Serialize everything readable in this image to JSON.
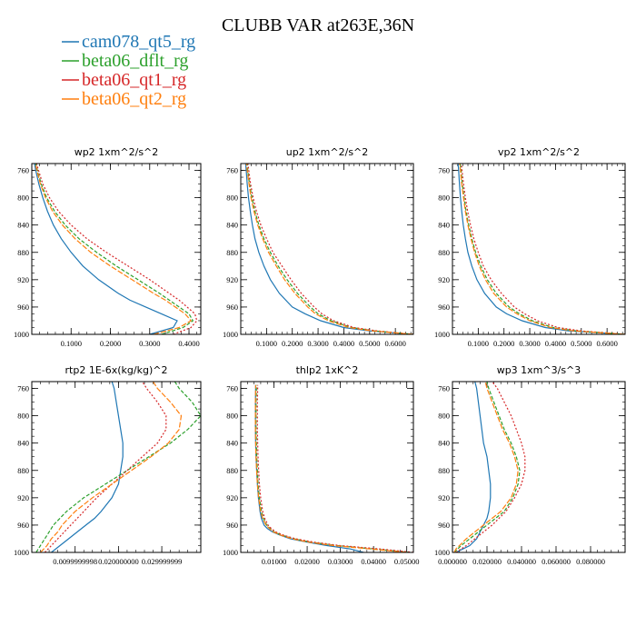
{
  "title": "CLUBB VAR at263E,36N",
  "legend": [
    {
      "name": "cam078_qt5_rg",
      "color": "#1f77b4",
      "dash": ""
    },
    {
      "name": "beta06_dflt_rg",
      "color": "#2ca02c",
      "dash": "4,2"
    },
    {
      "name": "beta06_qt1_rg",
      "color": "#d62728",
      "dash": "2,2"
    },
    {
      "name": "beta06_qt2_rg",
      "color": "#ff7f0e",
      "dash": "6,2"
    }
  ],
  "chart_data": [
    {
      "type": "line",
      "title": "wp2 1xm^2/s^2",
      "xlim": [
        0,
        0.43
      ],
      "ylim": [
        1000,
        750
      ],
      "xticks": [
        0.1,
        0.2,
        0.3,
        0.4
      ],
      "xtick_labels": [
        "0.1000",
        "0.2000",
        "0.3000",
        "0.4000"
      ],
      "yticks": [
        760,
        800,
        840,
        880,
        920,
        960,
        1000
      ],
      "y": [
        1000,
        990,
        980,
        970,
        960,
        950,
        940,
        920,
        900,
        880,
        860,
        840,
        820,
        800,
        780,
        760,
        750
      ],
      "series": [
        {
          "name": "cam078_qt5_rg",
          "values": [
            0.3,
            0.36,
            0.37,
            0.33,
            0.29,
            0.25,
            0.22,
            0.17,
            0.13,
            0.1,
            0.075,
            0.055,
            0.04,
            0.028,
            0.018,
            0.01,
            0.007
          ]
        },
        {
          "name": "beta06_dflt_rg",
          "values": [
            0.33,
            0.385,
            0.41,
            0.4,
            0.375,
            0.35,
            0.325,
            0.27,
            0.215,
            0.165,
            0.12,
            0.085,
            0.058,
            0.038,
            0.024,
            0.014,
            0.01
          ]
        },
        {
          "name": "beta06_qt1_rg",
          "values": [
            0.36,
            0.405,
            0.42,
            0.415,
            0.395,
            0.375,
            0.35,
            0.3,
            0.245,
            0.19,
            0.14,
            0.1,
            0.068,
            0.045,
            0.028,
            0.017,
            0.012
          ]
        },
        {
          "name": "beta06_qt2_rg",
          "values": [
            0.31,
            0.375,
            0.405,
            0.39,
            0.365,
            0.34,
            0.31,
            0.255,
            0.2,
            0.15,
            0.11,
            0.078,
            0.053,
            0.035,
            0.022,
            0.013,
            0.009
          ]
        }
      ]
    },
    {
      "type": "line",
      "title": "up2 1xm^2/s^2",
      "xlim": [
        0,
        0.67
      ],
      "ylim": [
        1000,
        750
      ],
      "xticks": [
        0.1,
        0.2,
        0.3,
        0.4,
        0.5,
        0.6
      ],
      "xtick_labels": [
        "0.1000",
        "0.2000",
        "0.3000",
        "0.4000",
        "0.5000",
        "0.6000"
      ],
      "yticks": [
        760,
        800,
        840,
        880,
        920,
        960,
        1000
      ],
      "y": [
        1000,
        995,
        990,
        980,
        970,
        960,
        940,
        920,
        900,
        880,
        860,
        840,
        820,
        800,
        780,
        760,
        750
      ],
      "series": [
        {
          "name": "cam078_qt5_rg",
          "values": [
            0.67,
            0.5,
            0.4,
            0.31,
            0.25,
            0.2,
            0.15,
            0.115,
            0.09,
            0.07,
            0.055,
            0.045,
            0.037,
            0.03,
            0.025,
            0.021,
            0.019
          ]
        },
        {
          "name": "beta06_dflt_rg",
          "values": [
            0.67,
            0.52,
            0.43,
            0.35,
            0.3,
            0.27,
            0.22,
            0.18,
            0.145,
            0.115,
            0.09,
            0.07,
            0.055,
            0.043,
            0.034,
            0.027,
            0.024
          ]
        },
        {
          "name": "beta06_qt1_rg",
          "values": [
            0.67,
            0.53,
            0.44,
            0.36,
            0.315,
            0.285,
            0.235,
            0.195,
            0.16,
            0.125,
            0.1,
            0.078,
            0.061,
            0.048,
            0.038,
            0.031,
            0.028
          ]
        },
        {
          "name": "beta06_qt2_rg",
          "values": [
            0.67,
            0.51,
            0.42,
            0.34,
            0.29,
            0.26,
            0.21,
            0.17,
            0.138,
            0.108,
            0.085,
            0.066,
            0.051,
            0.04,
            0.032,
            0.025,
            0.022
          ]
        }
      ]
    },
    {
      "type": "line",
      "title": "vp2 1xm^2/s^2",
      "xlim": [
        0,
        0.67
      ],
      "ylim": [
        1000,
        750
      ],
      "xticks": [
        0.1,
        0.2,
        0.3,
        0.4,
        0.5,
        0.6
      ],
      "xtick_labels": [
        "0.1000",
        "0.2000",
        "0.3000",
        "0.4000",
        "0.5000",
        "0.6000"
      ],
      "yticks": [
        760,
        800,
        840,
        880,
        920,
        960,
        1000
      ],
      "y": [
        1000,
        995,
        990,
        980,
        970,
        960,
        940,
        920,
        900,
        880,
        860,
        840,
        820,
        800,
        780,
        760,
        750
      ],
      "series": [
        {
          "name": "cam078_qt5_rg",
          "values": [
            0.67,
            0.45,
            0.36,
            0.27,
            0.21,
            0.17,
            0.125,
            0.095,
            0.075,
            0.06,
            0.05,
            0.042,
            0.036,
            0.031,
            0.027,
            0.024,
            0.022
          ]
        },
        {
          "name": "beta06_dflt_rg",
          "values": [
            0.67,
            0.48,
            0.39,
            0.31,
            0.26,
            0.22,
            0.17,
            0.135,
            0.11,
            0.09,
            0.075,
            0.063,
            0.053,
            0.045,
            0.038,
            0.033,
            0.03
          ]
        },
        {
          "name": "beta06_qt1_rg",
          "values": [
            0.67,
            0.5,
            0.41,
            0.33,
            0.28,
            0.24,
            0.19,
            0.15,
            0.12,
            0.1,
            0.083,
            0.07,
            0.059,
            0.05,
            0.043,
            0.037,
            0.034
          ]
        },
        {
          "name": "beta06_qt2_rg",
          "values": [
            0.67,
            0.47,
            0.38,
            0.3,
            0.25,
            0.21,
            0.16,
            0.128,
            0.104,
            0.086,
            0.072,
            0.06,
            0.05,
            0.043,
            0.036,
            0.031,
            0.028
          ]
        }
      ]
    },
    {
      "type": "line",
      "title": "rtp2 1E-6x(kg/kg)^2",
      "xlim": [
        0,
        0.039
      ],
      "ylim": [
        1000,
        750
      ],
      "xticks": [
        0.01,
        0.02,
        0.03
      ],
      "xtick_labels": [
        "0.0099999998",
        "0.020000000",
        "0.029999999"
      ],
      "yticks": [
        760,
        800,
        840,
        880,
        920,
        960,
        1000
      ],
      "y": [
        1000,
        990,
        980,
        970,
        960,
        950,
        940,
        920,
        900,
        880,
        860,
        840,
        820,
        800,
        780,
        760,
        750
      ],
      "series": [
        {
          "name": "cam078_qt5_rg",
          "values": [
            0.0045,
            0.0065,
            0.0085,
            0.0105,
            0.0125,
            0.0145,
            0.016,
            0.0185,
            0.02,
            0.0205,
            0.021,
            0.021,
            0.0205,
            0.02,
            0.0195,
            0.019,
            0.0185
          ]
        },
        {
          "name": "beta06_dflt_rg",
          "values": [
            0.001,
            0.002,
            0.003,
            0.004,
            0.005,
            0.0065,
            0.008,
            0.012,
            0.017,
            0.022,
            0.027,
            0.032,
            0.036,
            0.039,
            0.037,
            0.034,
            0.033
          ]
        },
        {
          "name": "beta06_qt1_rg",
          "values": [
            0.003,
            0.0045,
            0.006,
            0.0075,
            0.009,
            0.0105,
            0.012,
            0.015,
            0.0185,
            0.022,
            0.0255,
            0.029,
            0.031,
            0.031,
            0.029,
            0.0265,
            0.0255
          ]
        },
        {
          "name": "beta06_qt2_rg",
          "values": [
            0.002,
            0.0035,
            0.0045,
            0.006,
            0.007,
            0.0085,
            0.01,
            0.014,
            0.0185,
            0.023,
            0.0275,
            0.0315,
            0.034,
            0.0345,
            0.032,
            0.029,
            0.028
          ]
        }
      ]
    },
    {
      "type": "line",
      "title": "thlp2 1xK^2",
      "xlim": [
        0,
        0.052
      ],
      "ylim": [
        1000,
        750
      ],
      "xticks": [
        0.01,
        0.02,
        0.03,
        0.04,
        0.05
      ],
      "xtick_labels": [
        "0.01000",
        "0.02000",
        "0.03000",
        "0.04000",
        "0.05000"
      ],
      "yticks": [
        760,
        800,
        840,
        880,
        920,
        960,
        1000
      ],
      "y": [
        1000,
        995,
        990,
        985,
        980,
        975,
        970,
        965,
        960,
        950,
        940,
        920,
        900,
        880,
        860,
        840,
        820,
        800,
        780,
        760,
        755
      ],
      "series": [
        {
          "name": "cam078_qt5_rg",
          "values": [
            0.037,
            0.033,
            0.026,
            0.02,
            0.015,
            0.012,
            0.0095,
            0.008,
            0.007,
            0.0062,
            0.0058,
            0.0053,
            0.005,
            0.0048,
            0.0046,
            0.0045,
            0.0044,
            0.0044,
            0.0044,
            0.0045,
            0.0045
          ]
        },
        {
          "name": "beta06_dflt_rg",
          "values": [
            0.051,
            0.04,
            0.029,
            0.021,
            0.016,
            0.0125,
            0.01,
            0.0088,
            0.0078,
            0.0068,
            0.0062,
            0.0056,
            0.0052,
            0.005,
            0.0048,
            0.0047,
            0.0046,
            0.0046,
            0.0046,
            0.0047,
            0.0047
          ]
        },
        {
          "name": "beta06_qt1_rg",
          "values": [
            0.052,
            0.042,
            0.03,
            0.022,
            0.0165,
            0.013,
            0.0105,
            0.0092,
            0.0082,
            0.0072,
            0.0066,
            0.006,
            0.0056,
            0.0054,
            0.0052,
            0.0051,
            0.005,
            0.005,
            0.005,
            0.0051,
            0.0051
          ]
        },
        {
          "name": "beta06_qt2_rg",
          "values": [
            0.05,
            0.039,
            0.028,
            0.0205,
            0.0155,
            0.0122,
            0.0098,
            0.0086,
            0.0076,
            0.0066,
            0.006,
            0.0054,
            0.005,
            0.0048,
            0.0046,
            0.0045,
            0.0044,
            0.0044,
            0.0044,
            0.0045,
            0.0045
          ]
        }
      ]
    },
    {
      "type": "line",
      "title": "wp3 1xm^3/s^3",
      "xlim": [
        0,
        0.1
      ],
      "ylim": [
        1000,
        750
      ],
      "xticks": [
        0,
        0.02,
        0.04,
        0.06,
        0.08
      ],
      "xtick_labels": [
        "0.000000",
        "0.020000",
        "0.040000",
        "0.060000",
        "0.080000"
      ],
      "yticks": [
        760,
        800,
        840,
        880,
        920,
        960,
        1000
      ],
      "y": [
        1000,
        995,
        990,
        980,
        970,
        960,
        950,
        940,
        920,
        900,
        880,
        860,
        840,
        820,
        800,
        780,
        760,
        750
      ],
      "series": [
        {
          "name": "cam078_qt5_rg",
          "values": [
            0.002,
            0.006,
            0.01,
            0.014,
            0.016,
            0.018,
            0.02,
            0.021,
            0.022,
            0.022,
            0.021,
            0.02,
            0.018,
            0.017,
            0.016,
            0.015,
            0.014,
            0.013
          ]
        },
        {
          "name": "beta06_dflt_rg",
          "values": [
            0.001,
            0.003,
            0.005,
            0.01,
            0.015,
            0.02,
            0.025,
            0.03,
            0.035,
            0.038,
            0.039,
            0.037,
            0.034,
            0.03,
            0.027,
            0.024,
            0.021,
            0.02
          ]
        },
        {
          "name": "beta06_qt1_rg",
          "values": [
            0.002,
            0.005,
            0.008,
            0.013,
            0.018,
            0.023,
            0.027,
            0.031,
            0.036,
            0.04,
            0.042,
            0.042,
            0.04,
            0.037,
            0.034,
            0.03,
            0.026,
            0.023
          ]
        },
        {
          "name": "beta06_qt2_rg",
          "values": [
            0.001,
            0.002,
            0.004,
            0.008,
            0.013,
            0.018,
            0.023,
            0.028,
            0.034,
            0.037,
            0.038,
            0.036,
            0.033,
            0.029,
            0.026,
            0.023,
            0.02,
            0.019
          ]
        }
      ]
    }
  ]
}
